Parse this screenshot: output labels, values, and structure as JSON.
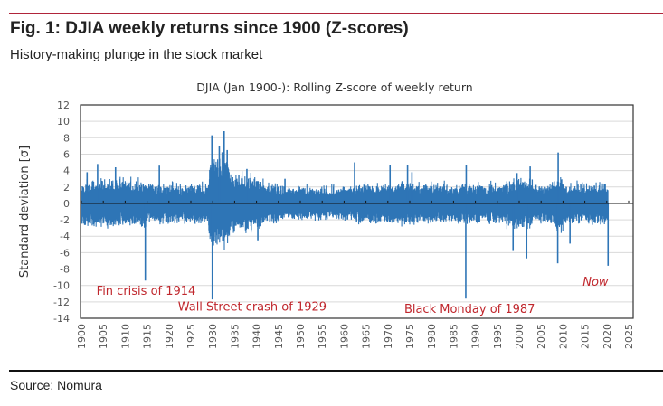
{
  "header": {
    "title": "Fig. 1: DJIA weekly returns since 1900 (Z-scores)",
    "subtitle": "History-making plunge in the stock market"
  },
  "footer": {
    "source": "Source: Nomura"
  },
  "colors": {
    "accent_rule": "#b0243a",
    "series": "#2e75b6",
    "annotation": "#c0272d",
    "grid": "#d9d9d9"
  },
  "chart_data": {
    "type": "line",
    "title": "DJIA (Jan 1900-): Rolling Z-score of weekly return",
    "xlabel": "",
    "ylabel": "Standard deviation [σ]",
    "xlim": [
      1900,
      2025
    ],
    "ylim": [
      -14,
      12
    ],
    "grid": true,
    "y_ticks": [
      12,
      10,
      8,
      6,
      4,
      2,
      0,
      -2,
      -4,
      -6,
      -8,
      -10,
      -12,
      -14
    ],
    "x_ticks": [
      1900,
      1905,
      1910,
      1915,
      1920,
      1925,
      1930,
      1935,
      1940,
      1945,
      1950,
      1955,
      1960,
      1965,
      1970,
      1975,
      1980,
      1985,
      1990,
      1995,
      2000,
      2005,
      2010,
      2015,
      2020,
      2025
    ],
    "series": [
      {
        "name": "Rolling Z-score of weekly return",
        "notable_points": [
          {
            "x": 1901.3,
            "y": 3.8
          },
          {
            "x": 1903.7,
            "y": 4.8
          },
          {
            "x": 1907.8,
            "y": 4.4
          },
          {
            "x": 1914.6,
            "y": -9.4
          },
          {
            "x": 1917.8,
            "y": 4.6
          },
          {
            "x": 1929.8,
            "y": 8.3
          },
          {
            "x": 1929.9,
            "y": -11.7
          },
          {
            "x": 1931.5,
            "y": 7.0
          },
          {
            "x": 1932.6,
            "y": 8.8
          },
          {
            "x": 1933.3,
            "y": 6.5
          },
          {
            "x": 1937.8,
            "y": 4.2
          },
          {
            "x": 1940.3,
            "y": -4.5
          },
          {
            "x": 1946.5,
            "y": 3.0
          },
          {
            "x": 1962.4,
            "y": 5.0
          },
          {
            "x": 1970.5,
            "y": 4.7
          },
          {
            "x": 1974.5,
            "y": 4.7
          },
          {
            "x": 1975.5,
            "y": 3.8
          },
          {
            "x": 1987.8,
            "y": -11.6
          },
          {
            "x": 1987.9,
            "y": 4.7
          },
          {
            "x": 1998.6,
            "y": -5.8
          },
          {
            "x": 1999.5,
            "y": 3.7
          },
          {
            "x": 2001.7,
            "y": -6.7
          },
          {
            "x": 2002.5,
            "y": 4.5
          },
          {
            "x": 2008.8,
            "y": -7.3
          },
          {
            "x": 2008.9,
            "y": 6.2
          },
          {
            "x": 2011.6,
            "y": -4.9
          },
          {
            "x": 2020.3,
            "y": -7.6
          }
        ]
      }
    ],
    "annotations": [
      {
        "text": "Fin crisis of 1914",
        "x": 1914.6,
        "y": -10.7
      },
      {
        "text": "Wall Street crash of 1929",
        "x": 1929.9,
        "y": -12.6
      },
      {
        "text": "Black Monday of 1987",
        "x": 1987.8,
        "y": -12.9
      },
      {
        "text": "Now",
        "x": 2020.3,
        "y": -9.6
      }
    ]
  }
}
